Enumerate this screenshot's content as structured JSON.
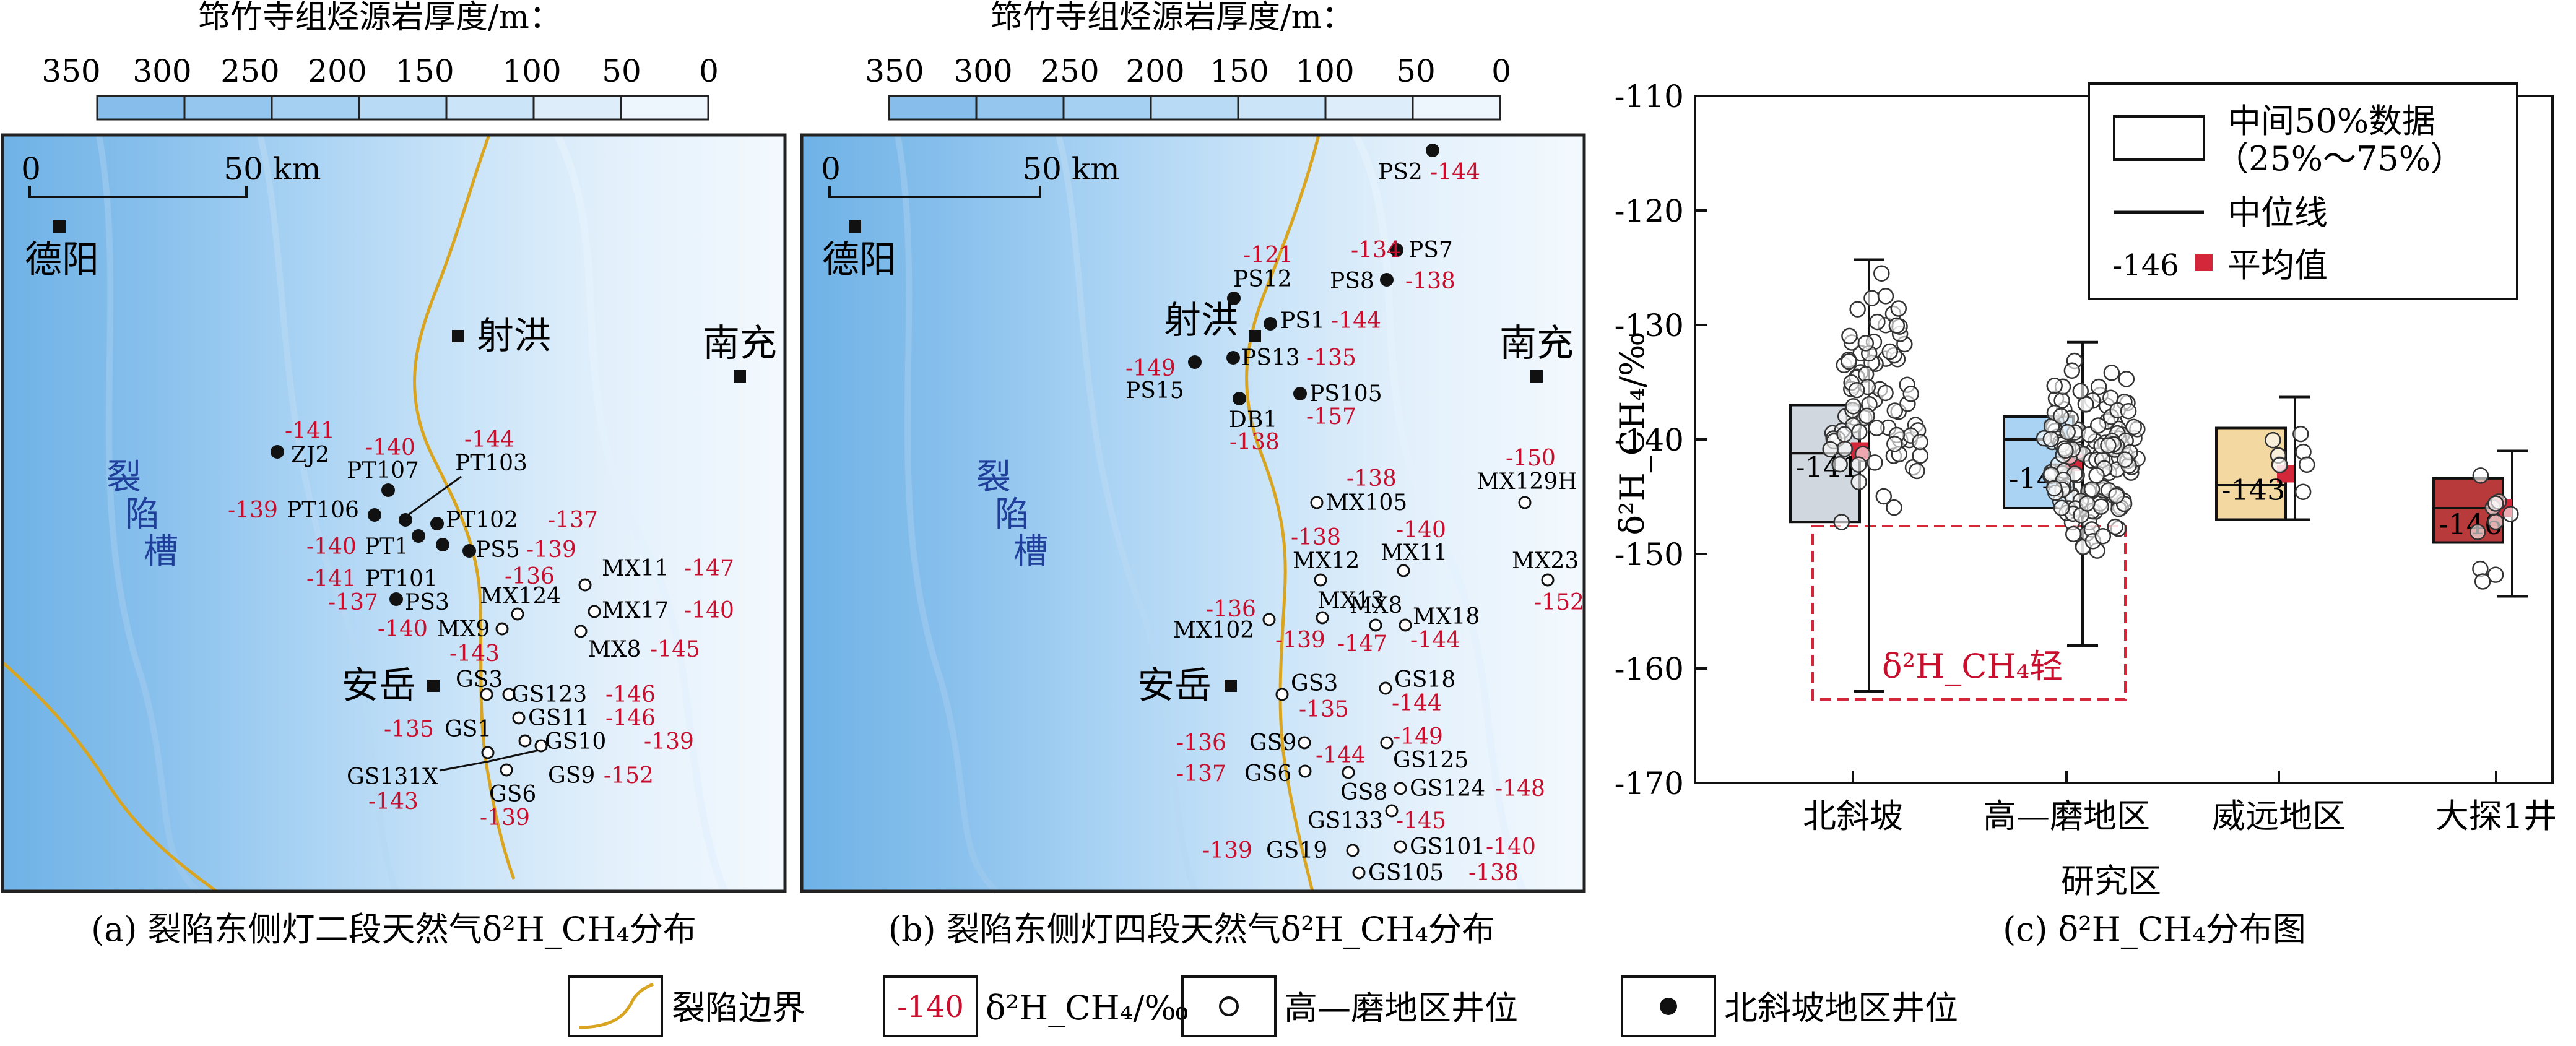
{
  "scale_bar": {
    "title": "筇竹寺组烃源岩厚度/m：",
    "ticks": [
      "350",
      "300",
      "250",
      "200",
      "150",
      "100",
      "50",
      "0"
    ],
    "colors": [
      "#86bdeb",
      "#95c6ee",
      "#a6d0f1",
      "#b8daf4",
      "#cbe4f7",
      "#ddeefa",
      "#eef6fd"
    ]
  },
  "map_a": {
    "caption": "(a) 裂陷东侧灯二段天然气δ²H_CH₄分布",
    "distance": {
      "zero": "0",
      "label": "50 km"
    },
    "cities": [
      "德阳",
      "射洪",
      "南充",
      "安岳"
    ],
    "trough_chars": [
      "裂",
      "陷",
      "槽"
    ],
    "wells_labels": [
      "ZJ2",
      "PT107",
      "PT103",
      "PT106",
      "PT102",
      "PT1",
      "PS5",
      "PT101",
      "PS3",
      "MX124",
      "MX9",
      "MX11",
      "MX17",
      "MX8",
      "GS3",
      "GS123",
      "GS11",
      "GS1",
      "GS10",
      "GS131X",
      "GS9",
      "GS6"
    ],
    "values": [
      "-141",
      "-140",
      "-144",
      "-139",
      "-137",
      "-140",
      "-139",
      "-141",
      "-136",
      "-137",
      "-140",
      "-147",
      "-140",
      "-145",
      "-143",
      "-146",
      "-135",
      "-146",
      "-139",
      "-152",
      "-143",
      "-139"
    ]
  },
  "map_b": {
    "caption": "(b) 裂陷东侧灯四段天然气δ²H_CH₄分布",
    "distance": {
      "zero": "0",
      "label": "50 km"
    },
    "cities": [
      "德阳",
      "射洪",
      "南充",
      "安岳"
    ],
    "trough_chars": [
      "裂",
      "陷",
      "槽"
    ],
    "wells_labels": [
      "PS2",
      "PS7",
      "PS12",
      "PS8",
      "PS1",
      "PS13",
      "PS15",
      "PS105",
      "DB1",
      "MX105",
      "MX129H",
      "MX12",
      "MX11",
      "MX23",
      "MX13",
      "MX8",
      "MX18",
      "MX102",
      "GS3",
      "GS18",
      "GS9",
      "GS125",
      "GS6",
      "GS8",
      "GS124",
      "GS133",
      "GS101",
      "GS19",
      "GS105"
    ],
    "values": [
      "-144",
      "-134",
      "-121",
      "-138",
      "-144",
      "-135",
      "-149",
      "-157",
      "-138",
      "-138",
      "-150",
      "-138",
      "-140",
      "-152",
      "-136",
      "-139",
      "-147",
      "-144",
      "-135",
      "-144",
      "-136",
      "-144",
      "-149",
      "-137",
      "-148",
      "-145",
      "-140",
      "-139",
      "-138"
    ]
  },
  "chart_data": {
    "type": "box",
    "xlabel": "研究区",
    "ylabel": "δ²H_CH₄/‰",
    "ylim": [
      -170,
      -110
    ],
    "yticks": [
      "-110",
      "-120",
      "-130",
      "-140",
      "-150",
      "-160",
      "-170"
    ],
    "categories": [
      "北斜坡",
      "高—磨地区",
      "威远地区",
      "大探1井"
    ],
    "boxes": [
      {
        "name": "北斜坡",
        "whisker_low": -162,
        "q1": -147.2,
        "median": -141.2,
        "q3": -137.0,
        "whisker_high": -124.3,
        "mean": -141,
        "mean_label": "-141",
        "color": "#d1d7de"
      },
      {
        "name": "高—磨地区",
        "whisker_low": -158,
        "q1": -146.0,
        "median": -140.0,
        "q3": -138.0,
        "whisker_high": -131.5,
        "mean": -142,
        "mean_label": "-142",
        "color": "#a9d2f3"
      },
      {
        "name": "威远地区",
        "whisker_low": -147,
        "q1": -147.0,
        "median": -144.0,
        "q3": -139.0,
        "whisker_high": -136.3,
        "mean": -143,
        "mean_label": "-143",
        "color": "#f3d8a2"
      },
      {
        "name": "大探1井",
        "whisker_low": -153.7,
        "q1": -149.0,
        "median": -146.0,
        "q3": -143.4,
        "whisker_high": -141.0,
        "mean": -146,
        "mean_label": "-146",
        "color": "#b83a3a"
      }
    ],
    "annotation": "δ²H_CH₄轻",
    "legend": {
      "box": "中间50%数据",
      "box_range": "（25%～75%）",
      "median": "中位线",
      "mean_sample": "-146",
      "mean": "平均值"
    },
    "caption": "(c) δ²H_CH₄分布图"
  },
  "bottom_legend": {
    "boundary": "裂陷边界",
    "value_sample": "-140",
    "value_unit": "δ²H_CH₄/‰",
    "open_well": "高—磨地区井位",
    "filled_well": "北斜坡地区井位"
  },
  "colors": {
    "accent_red": "#c8102e",
    "boundary": "#d9a520",
    "trough_text": "#1f3f9a"
  }
}
